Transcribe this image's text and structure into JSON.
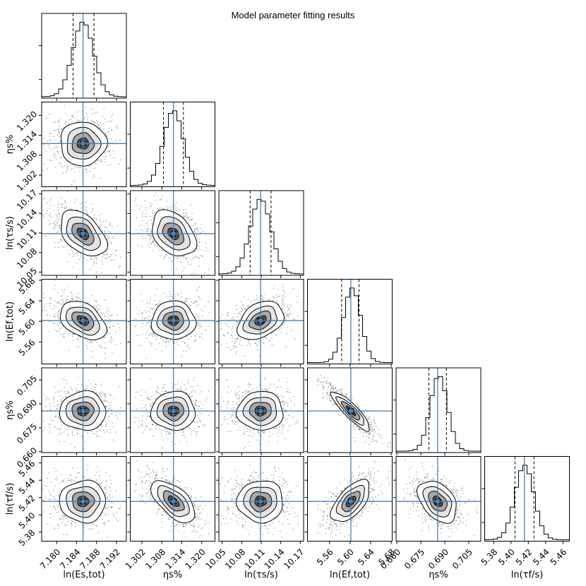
{
  "chart_data": {
    "type": "corner",
    "title": "Model parameter fitting results",
    "truth_color": "#4682b4",
    "parameters": [
      {
        "label": "ln(E_s,tot)",
        "axis_label": "ln(Es,tot)",
        "range": [
          7.177,
          7.194
        ],
        "ticks": [
          "7.180",
          "7.184",
          "7.188",
          "7.192"
        ],
        "true_value": 7.1853,
        "quantiles": [
          7.1833,
          7.1853,
          7.1875
        ]
      },
      {
        "label": "η_s%",
        "axis_label": "ηs%",
        "range": [
          1.2985,
          1.324
        ],
        "ticks": [
          "1.302",
          "1.308",
          "1.314",
          "1.320"
        ],
        "true_value": 1.3115,
        "quantiles": [
          1.3085,
          1.3115,
          1.3145
        ]
      },
      {
        "label": "ln(τ_s/s)",
        "axis_label": "ln(τs/s)",
        "range": [
          10.045,
          10.175
        ],
        "ticks": [
          "10.05",
          "10.08",
          "10.11",
          "10.14",
          "10.17"
        ],
        "true_value": 10.109,
        "quantiles": [
          10.093,
          10.109,
          10.125
        ]
      },
      {
        "label": "ln(E_f,tot)",
        "axis_label": "ln(Ef,tot)",
        "range": [
          5.517,
          5.682
        ],
        "ticks": [
          "5.56",
          "5.60",
          "5.64",
          "5.68"
        ],
        "true_value": 5.6015,
        "quantiles": [
          5.5835,
          5.6015,
          5.6175
        ]
      },
      {
        "label": "η_s%",
        "axis_label": "ηs%",
        "range": [
          0.6595,
          0.7125
        ],
        "ticks": [
          "0.660",
          "0.675",
          "0.690",
          "0.705"
        ],
        "true_value": 0.6855,
        "quantiles": [
          0.68,
          0.6855,
          0.691
        ]
      },
      {
        "label": "ln(τ_f/s)",
        "axis_label": "ln(τf/s)",
        "range": [
          5.3695,
          5.4675
        ],
        "ticks": [
          "5.38",
          "5.40",
          "5.42",
          "5.44",
          "5.46"
        ],
        "true_value": 5.4155,
        "quantiles": [
          5.4045,
          5.4155,
          5.4265
        ]
      }
    ],
    "correlations": [
      [
        1,
        0,
        -0.45,
        -0.4,
        0,
        0
      ],
      [
        0,
        1,
        -0.35,
        0,
        0,
        -0.6
      ],
      [
        -0.45,
        -0.35,
        1,
        0.35,
        0,
        0
      ],
      [
        -0.4,
        0,
        0.35,
        1,
        -0.88,
        0.6
      ],
      [
        0,
        0,
        0,
        -0.88,
        1,
        -0.4
      ],
      [
        0,
        -0.6,
        0,
        0.6,
        -0.4,
        1
      ]
    ]
  }
}
